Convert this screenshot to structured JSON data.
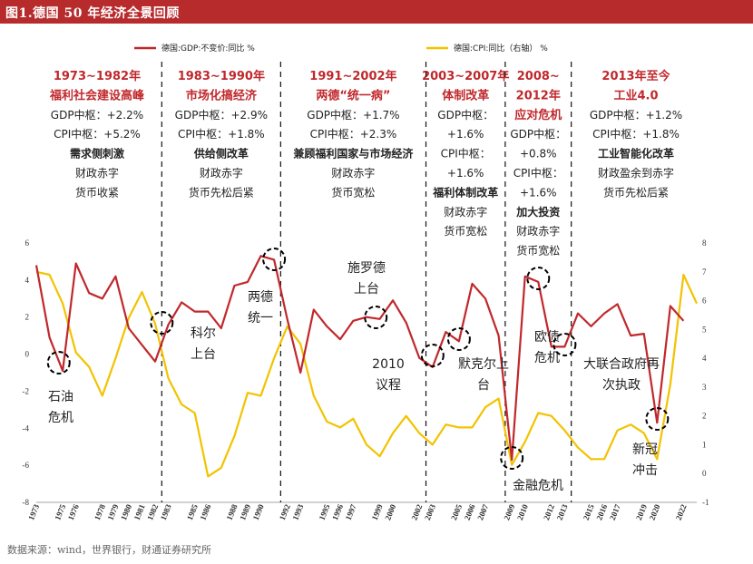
{
  "header": {
    "title": "图1.德国 50 年经济全景回顾"
  },
  "footer": {
    "source": "数据来源：wind，世界银行，财通证券研究所"
  },
  "legend": [
    {
      "label": "德国:GDP:不变价:同比 %",
      "color": "#c0282c"
    },
    {
      "label": "德国:CPI:同比（右轴） %",
      "color": "#f2c300"
    }
  ],
  "periods": [
    {
      "lines": [
        {
          "t": "1973~1982年",
          "s": "head"
        },
        {
          "t": "福利社会建设高峰",
          "s": "head"
        },
        {
          "t": "GDP中枢：+2.2%",
          "s": "norm"
        },
        {
          "t": "CPI中枢：+5.2%",
          "s": "norm"
        },
        {
          "t": "需求侧刺激",
          "s": "bold"
        },
        {
          "t": "财政赤字",
          "s": "norm"
        },
        {
          "t": "货币收紧",
          "s": "norm"
        }
      ]
    },
    {
      "lines": [
        {
          "t": "1983~1990年",
          "s": "head"
        },
        {
          "t": "市场化搞经济",
          "s": "head"
        },
        {
          "t": "GDP中枢：+2.9%",
          "s": "norm"
        },
        {
          "t": "CPI中枢：+1.8%",
          "s": "norm"
        },
        {
          "t": "供给侧改革",
          "s": "bold"
        },
        {
          "t": "财政赤字",
          "s": "norm"
        },
        {
          "t": "货币先松后紧",
          "s": "norm"
        }
      ]
    },
    {
      "lines": [
        {
          "t": "1991~2002年",
          "s": "head"
        },
        {
          "t": "两德“统一病”",
          "s": "head"
        },
        {
          "t": "GDP中枢：+1.7%",
          "s": "norm"
        },
        {
          "t": "CPI中枢：+2.3%",
          "s": "norm"
        },
        {
          "t": "兼顾福利国家与市场经济",
          "s": "bold"
        },
        {
          "t": "财政赤字",
          "s": "norm"
        },
        {
          "t": "货币宽松",
          "s": "norm"
        }
      ]
    },
    {
      "lines": [
        {
          "t": "2003~2007年",
          "s": "head"
        },
        {
          "t": "体制改革",
          "s": "head"
        },
        {
          "t": "GDP中枢：",
          "s": "norm"
        },
        {
          "t": "+1.6%",
          "s": "norm"
        },
        {
          "t": "CPI中枢：",
          "s": "norm"
        },
        {
          "t": "+1.6%",
          "s": "norm"
        },
        {
          "t": "福利体制改革",
          "s": "bold"
        },
        {
          "t": "财政赤字",
          "s": "norm"
        },
        {
          "t": "货币宽松",
          "s": "norm"
        }
      ]
    },
    {
      "lines": [
        {
          "t": "2008~",
          "s": "head"
        },
        {
          "t": "2012年",
          "s": "head"
        },
        {
          "t": "应对危机",
          "s": "head"
        },
        {
          "t": "GDP中枢：",
          "s": "norm"
        },
        {
          "t": "+0.8%",
          "s": "norm"
        },
        {
          "t": "CPI中枢：",
          "s": "norm"
        },
        {
          "t": "+1.6%",
          "s": "norm"
        },
        {
          "t": "加大投资",
          "s": "bold"
        },
        {
          "t": "财政赤字",
          "s": "norm"
        },
        {
          "t": "货币宽松",
          "s": "norm"
        }
      ]
    },
    {
      "lines": [
        {
          "t": "2013年至今",
          "s": "head"
        },
        {
          "t": "工业4.0",
          "s": "head"
        },
        {
          "t": "GDP中枢：+1.2%",
          "s": "norm"
        },
        {
          "t": "CPI中枢：+1.8%",
          "s": "norm"
        },
        {
          "t": "工业智能化改革",
          "s": "bold"
        },
        {
          "t": "财政盈余到赤字",
          "s": "norm"
        },
        {
          "t": "货币先松后紧",
          "s": "norm"
        }
      ]
    }
  ],
  "events": [
    {
      "lines": [
        "石油",
        "危机"
      ],
      "year": 1974.7
    },
    {
      "lines": [
        "科尔",
        "上台"
      ],
      "year": 1982.5
    },
    {
      "lines": [
        "两德",
        "统一"
      ],
      "year": 1991
    },
    {
      "lines": [
        "施罗德",
        "上台"
      ],
      "year": 1998.7
    },
    {
      "lines": [
        "2010",
        "议程"
      ],
      "year": 2003
    },
    {
      "lines": [
        "默克尔上",
        "台"
      ],
      "year": 2005
    },
    {
      "lines": [
        "金融危机"
      ],
      "year": 2009
    },
    {
      "lines": [
        "欧债",
        "危机"
      ],
      "year": 2011
    },
    {
      "lines": [
        "大联合政府再",
        "次执政"
      ],
      "year": 2013
    },
    {
      "lines": [
        "新冠",
        "冲击"
      ],
      "year": 2020
    }
  ],
  "chart_data": {
    "type": "line",
    "title": "图1.德国 50 年经济全景回顾",
    "x": [
      1973,
      1974,
      1975,
      1976,
      1977,
      1978,
      1979,
      1980,
      1981,
      1982,
      1983,
      1984,
      1985,
      1986,
      1987,
      1988,
      1989,
      1990,
      1991,
      1992,
      1993,
      1994,
      1995,
      1996,
      1997,
      1998,
      1999,
      2000,
      2001,
      2002,
      2003,
      2004,
      2005,
      2006,
      2007,
      2008,
      2009,
      2010,
      2011,
      2012,
      2013,
      2014,
      2015,
      2016,
      2017,
      2018,
      2019,
      2020,
      2021,
      2022,
      2023
    ],
    "x_tick_labels": [
      "1973",
      "1975",
      "1976",
      "1978",
      "1979",
      "1980",
      "1981",
      "1982",
      "1983",
      "1985",
      "1986",
      "1988",
      "1989",
      "1990",
      "1992",
      "1993",
      "1995",
      "1996",
      "1997",
      "1999",
      "2000",
      "2002",
      "2003",
      "2005",
      "2006",
      "2007",
      "2009",
      "2010",
      "2012",
      "2013",
      "2015",
      "2016",
      "2017",
      "2019",
      "2020",
      "2022"
    ],
    "series": [
      {
        "name": "德国:GDP:不变价:同比 %",
        "axis": "left",
        "color": "#c0282c",
        "values": [
          4.8,
          0.9,
          -0.9,
          4.9,
          3.3,
          3.0,
          4.2,
          1.4,
          0.5,
          -0.4,
          1.6,
          2.8,
          2.3,
          2.3,
          1.4,
          3.7,
          3.9,
          5.3,
          5.1,
          1.9,
          -1.0,
          2.4,
          1.5,
          0.8,
          1.8,
          2.0,
          1.9,
          2.9,
          1.7,
          -0.2,
          -0.7,
          1.2,
          0.7,
          3.8,
          3.0,
          1.0,
          -5.7,
          4.2,
          3.9,
          0.4,
          0.4,
          2.2,
          1.5,
          2.2,
          2.7,
          1.0,
          1.1,
          -3.7,
          2.6,
          1.8,
          null
        ]
      },
      {
        "name": "德国:CPI:同比（右轴） %",
        "axis": "right",
        "color": "#f2c300",
        "values": [
          7.0,
          6.9,
          5.9,
          4.2,
          3.7,
          2.7,
          4.0,
          5.4,
          6.3,
          5.2,
          3.3,
          2.4,
          2.1,
          -0.1,
          0.2,
          1.3,
          2.8,
          2.7,
          4.0,
          5.1,
          4.5,
          2.7,
          1.8,
          1.6,
          1.9,
          1.0,
          0.6,
          1.4,
          2.0,
          1.4,
          1.0,
          1.7,
          1.6,
          1.6,
          2.3,
          2.6,
          0.3,
          1.1,
          2.1,
          2.0,
          1.5,
          0.9,
          0.5,
          0.5,
          1.5,
          1.7,
          1.4,
          0.5,
          3.1,
          6.9,
          5.9
        ]
      }
    ],
    "y_left": {
      "min": -8,
      "max": 6,
      "ticks": [
        -8,
        -6,
        -4,
        -2,
        0,
        2,
        4,
        6
      ]
    },
    "y_right": {
      "min": -1,
      "max": 8,
      "ticks": [
        -1,
        0,
        1,
        2,
        3,
        4,
        5,
        6,
        7,
        8
      ]
    },
    "period_dividers": [
      1982.5,
      1991.5,
      2002.5,
      2008.5,
      2013.5
    ],
    "legend_position": "top"
  }
}
